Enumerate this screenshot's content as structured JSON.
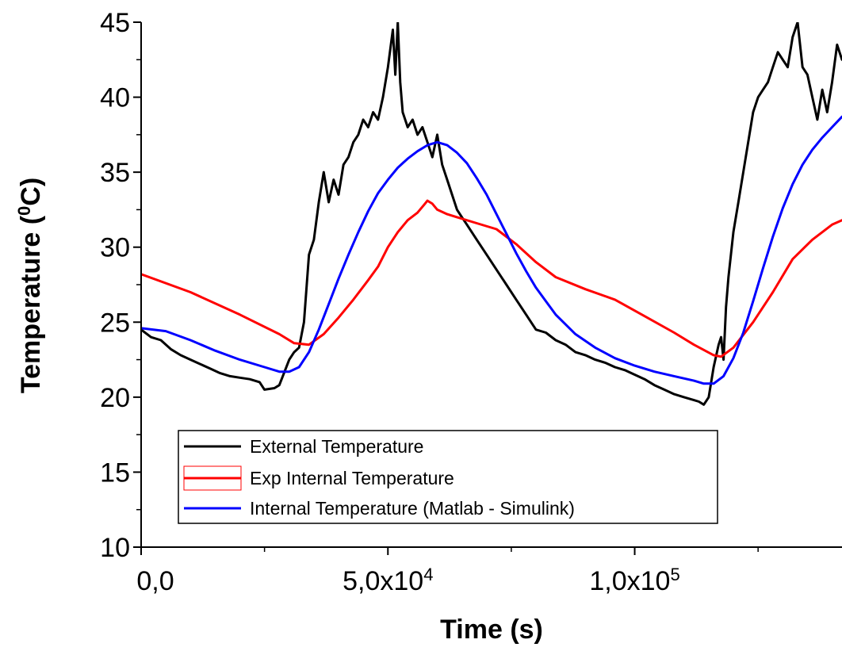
{
  "chart_data": {
    "type": "line",
    "title": "",
    "xlabel": "Time (s)",
    "ylabel": "Temperature (ºC)",
    "ylabel_parts": {
      "main": "Temperature (",
      "sup": "0",
      "unit": "C)"
    },
    "xlim": [
      0,
      142000
    ],
    "ylim": [
      10,
      45
    ],
    "x_ticks": [
      {
        "value": 0,
        "label": "0,0"
      },
      {
        "value": 50000,
        "label": "5,0x10",
        "exp": "4"
      },
      {
        "value": 100000,
        "label": "1,0x10",
        "exp": "5"
      }
    ],
    "x_minor_ticks": [
      25000,
      75000,
      125000
    ],
    "y_ticks": [
      10,
      15,
      20,
      25,
      30,
      35,
      40,
      45
    ],
    "y_minor_step": 2.5,
    "grid": false,
    "legend_position": "lower-left",
    "series": [
      {
        "name": "External Temperature",
        "color": "#000000",
        "x": [
          0,
          2000,
          4000,
          6000,
          8000,
          10000,
          12000,
          14000,
          16000,
          18000,
          20000,
          22000,
          24000,
          25000,
          27000,
          28000,
          30000,
          31000,
          32000,
          33000,
          34000,
          35000,
          36000,
          37000,
          38000,
          39000,
          40000,
          41000,
          42000,
          43000,
          44000,
          45000,
          46000,
          47000,
          48000,
          49000,
          50000,
          51000,
          51500,
          52000,
          52500,
          53000,
          54000,
          55000,
          56000,
          57000,
          58000,
          59000,
          60000,
          61000,
          62000,
          63000,
          64000,
          65000,
          66000,
          67000,
          68000,
          70000,
          72000,
          74000,
          76000,
          78000,
          80000,
          82000,
          84000,
          86000,
          88000,
          90000,
          92000,
          94000,
          96000,
          98000,
          100000,
          102000,
          104000,
          106000,
          108000,
          110000,
          112000,
          113000,
          114000,
          115000,
          116000,
          117000,
          117500,
          118000,
          118500,
          119000,
          120000,
          121000,
          122000,
          123000,
          124000,
          125000,
          126000,
          127000,
          128000,
          129000,
          130000,
          131000,
          132000,
          133000,
          134000,
          135000,
          136000,
          137000,
          138000,
          139000,
          140000,
          141000,
          142000
        ],
        "y": [
          24.5,
          24.0,
          23.8,
          23.2,
          22.8,
          22.5,
          22.2,
          21.9,
          21.6,
          21.4,
          21.3,
          21.2,
          21.0,
          20.5,
          20.6,
          20.8,
          22.5,
          23.0,
          23.3,
          25.0,
          29.5,
          30.5,
          33.0,
          35.0,
          33.0,
          34.5,
          33.5,
          35.5,
          36.0,
          37.0,
          37.5,
          38.5,
          38.0,
          39.0,
          38.5,
          40.0,
          42.0,
          44.5,
          41.5,
          45.0,
          41.0,
          39.0,
          38.0,
          38.5,
          37.5,
          38.0,
          37.0,
          36.0,
          37.5,
          35.5,
          34.5,
          33.5,
          32.5,
          32.0,
          31.5,
          31.0,
          30.5,
          29.5,
          28.5,
          27.5,
          26.5,
          25.5,
          24.5,
          24.3,
          23.8,
          23.5,
          23.0,
          22.8,
          22.5,
          22.3,
          22.0,
          21.8,
          21.5,
          21.2,
          20.8,
          20.5,
          20.2,
          20.0,
          19.8,
          19.7,
          19.5,
          20.0,
          22.0,
          23.5,
          24.0,
          22.5,
          26.0,
          28.0,
          31.0,
          33.0,
          35.0,
          37.0,
          39.0,
          40.0,
          40.5,
          41.0,
          42.0,
          43.0,
          42.5,
          42.0,
          44.0,
          45.0,
          42.0,
          41.5,
          40.0,
          38.5,
          40.5,
          39.0,
          41.0,
          43.5,
          42.5
        ]
      },
      {
        "name": "Exp Internal Temperature",
        "color": "#ff0000",
        "x": [
          0,
          10000,
          20000,
          28000,
          31000,
          34000,
          37000,
          40000,
          43000,
          46000,
          48000,
          50000,
          52000,
          54000,
          56000,
          57500,
          58000,
          59000,
          60000,
          62000,
          64000,
          68000,
          72000,
          76000,
          80000,
          84000,
          90000,
          96000,
          102000,
          108000,
          112000,
          116000,
          117500,
          120000,
          124000,
          128000,
          132000,
          136000,
          140000,
          142000
        ],
        "y": [
          28.2,
          27.0,
          25.5,
          24.2,
          23.6,
          23.5,
          24.2,
          25.3,
          26.5,
          27.8,
          28.7,
          30.0,
          31.0,
          31.8,
          32.3,
          32.9,
          33.1,
          32.9,
          32.5,
          32.2,
          32.0,
          31.6,
          31.2,
          30.2,
          29.0,
          28.0,
          27.2,
          26.5,
          25.4,
          24.3,
          23.5,
          22.8,
          22.7,
          23.3,
          25.0,
          27.0,
          29.2,
          30.5,
          31.5,
          31.8
        ]
      },
      {
        "name": "Internal Temperature (Matlab - Simulink)",
        "color": "#0000ff",
        "x": [
          0,
          5000,
          10000,
          15000,
          20000,
          25000,
          28000,
          30000,
          32000,
          34000,
          36000,
          38000,
          40000,
          42000,
          44000,
          46000,
          48000,
          50000,
          52000,
          54000,
          56000,
          58000,
          60000,
          62000,
          64000,
          66000,
          68000,
          70000,
          72000,
          74000,
          76000,
          78000,
          80000,
          84000,
          88000,
          92000,
          96000,
          100000,
          104000,
          108000,
          112000,
          114000,
          115000,
          116000,
          118000,
          120000,
          122000,
          124000,
          126000,
          128000,
          130000,
          132000,
          134000,
          136000,
          138000,
          140000,
          142000
        ],
        "y": [
          24.6,
          24.4,
          23.8,
          23.1,
          22.5,
          22.0,
          21.7,
          21.7,
          22.0,
          23.0,
          24.5,
          26.2,
          27.9,
          29.5,
          31.0,
          32.4,
          33.6,
          34.5,
          35.3,
          35.9,
          36.4,
          36.8,
          37.0,
          36.8,
          36.3,
          35.6,
          34.6,
          33.5,
          32.2,
          30.9,
          29.6,
          28.4,
          27.3,
          25.5,
          24.2,
          23.3,
          22.6,
          22.1,
          21.7,
          21.4,
          21.1,
          20.9,
          20.9,
          20.9,
          21.4,
          22.6,
          24.3,
          26.4,
          28.6,
          30.7,
          32.6,
          34.2,
          35.5,
          36.5,
          37.3,
          38.0,
          38.7
        ]
      }
    ]
  }
}
